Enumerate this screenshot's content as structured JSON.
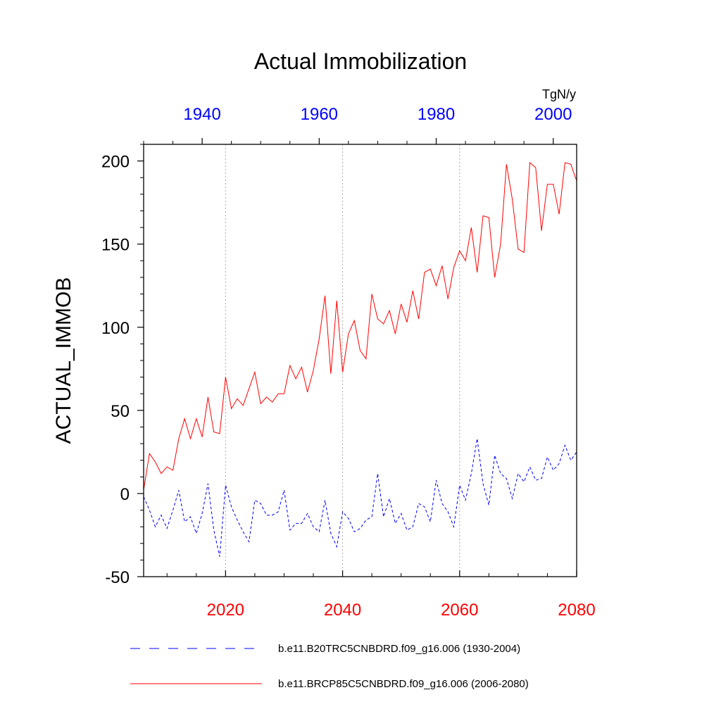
{
  "chart_data": {
    "type": "line",
    "title": "Actual Immobilization",
    "ylabel": "ACTUAL_IMMOB",
    "units": "TgN/y",
    "ylim": [
      -50,
      210
    ],
    "yticks": [
      -50,
      0,
      50,
      100,
      150,
      200
    ],
    "ytick_labels": [
      "-50",
      "0",
      "50",
      "100",
      "150",
      "200"
    ],
    "x_bottom": {
      "range": [
        2006,
        2080
      ],
      "ticks": [
        2020,
        2040,
        2060,
        2080
      ],
      "tick_labels": [
        "2020",
        "2040",
        "2060",
        "2080"
      ],
      "color": "#ff0000"
    },
    "x_top": {
      "range": [
        1930,
        2004
      ],
      "ticks": [
        1940,
        1960,
        1980,
        2000
      ],
      "tick_labels": [
        "1940",
        "1960",
        "1980",
        "2000"
      ],
      "color": "#0000ff"
    },
    "grid_x_at": [
      2020,
      2040,
      2060
    ],
    "series": [
      {
        "name": "b.e11.B20TRC5CNBDRD.f09_g16.006 (1930-2004)",
        "axis": "top",
        "style": "dashed",
        "color": "#0000ff",
        "x_start": 1930,
        "values": [
          -2,
          -10,
          -20,
          -13,
          -21,
          -10,
          2,
          -17,
          -14,
          -24,
          -12,
          6,
          -22,
          -38,
          5,
          -8,
          -16,
          -23,
          -29,
          -4,
          -6,
          -13,
          -13,
          -11,
          2,
          -22,
          -18,
          -18,
          -12,
          -20,
          -23,
          -4,
          -24,
          -32,
          -11,
          -15,
          -23,
          -21,
          -16,
          -14,
          12,
          -14,
          -3,
          -18,
          -12,
          -22,
          -20,
          -6,
          -8,
          -17,
          8,
          -6,
          -11,
          -20,
          5,
          -4,
          12,
          33,
          6,
          -7,
          23,
          12,
          9,
          -3,
          12,
          7,
          16,
          8,
          9,
          22,
          14,
          18,
          29,
          20,
          25
        ]
      },
      {
        "name": "b.e11.BRCP85C5CNBDRD.f09_g16.006 (2006-2080)",
        "axis": "bottom",
        "style": "solid",
        "color": "#ff0000",
        "x_start": 2006,
        "values": [
          2,
          24,
          19,
          12,
          16,
          14,
          33,
          45,
          33,
          45,
          34,
          58,
          37,
          36,
          70,
          51,
          57,
          53,
          63,
          73,
          54,
          58,
          55,
          60,
          60,
          77,
          69,
          76,
          61,
          74,
          93,
          119,
          72,
          116,
          73,
          96,
          104,
          86,
          81,
          120,
          105,
          102,
          110,
          96,
          114,
          103,
          122,
          105,
          133,
          135,
          125,
          137,
          117,
          136,
          146,
          140,
          160,
          133,
          167,
          166,
          130,
          150,
          198,
          177,
          147,
          145,
          199,
          196,
          158,
          186,
          186,
          168,
          199,
          198,
          188
        ]
      }
    ]
  }
}
